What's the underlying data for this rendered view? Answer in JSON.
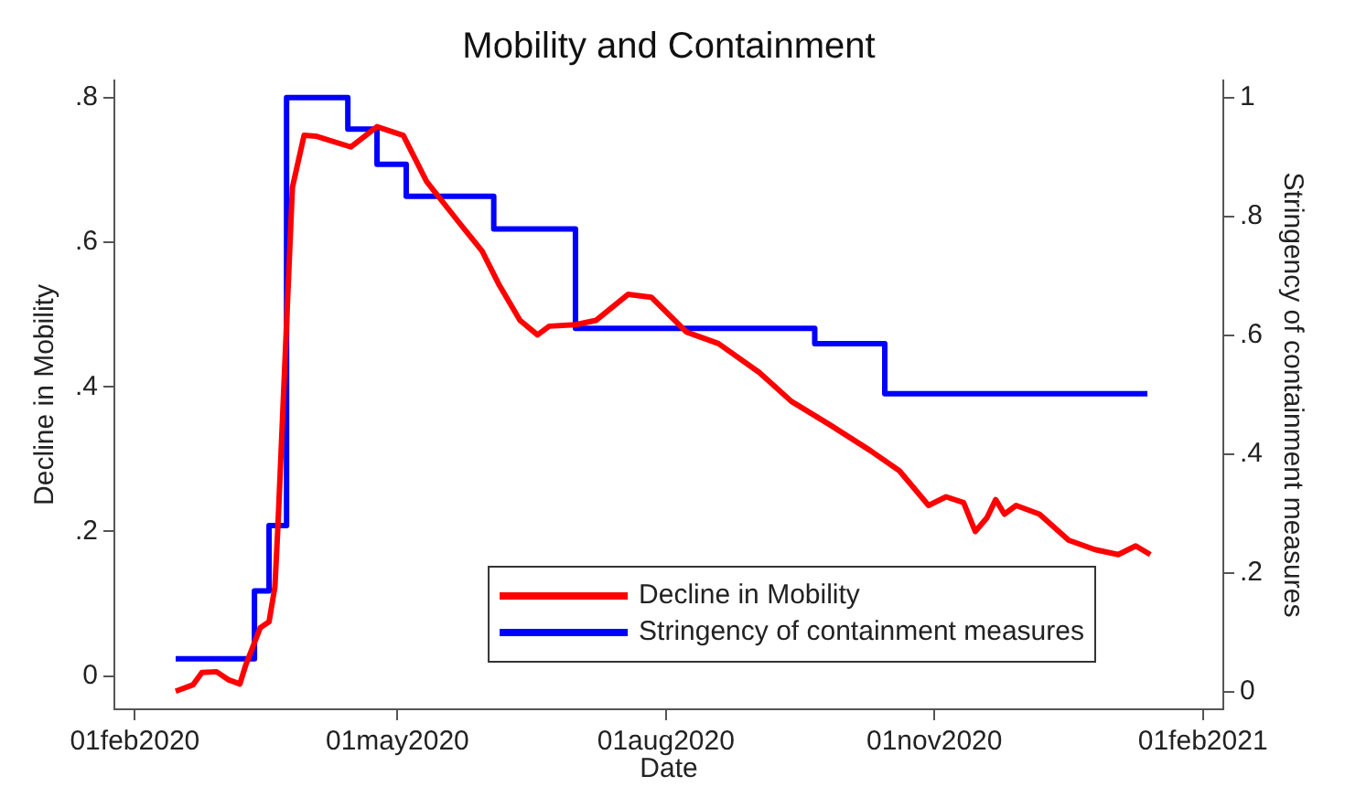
{
  "chart_data": {
    "type": "line",
    "title": "Mobility and Containment",
    "xlabel": "Date",
    "ylabel": "Decline in Mobility",
    "y2label": "Stringency of containment measures",
    "xlim": [
      "2020-01-25",
      "2021-02-08"
    ],
    "xticks": [
      {
        "value": "2020-02-01",
        "label": "01feb2020"
      },
      {
        "value": "2020-05-01",
        "label": "01may2020"
      },
      {
        "value": "2020-08-01",
        "label": "01aug2020"
      },
      {
        "value": "2020-11-01",
        "label": "01nov2020"
      },
      {
        "value": "2021-02-01",
        "label": "01feb2021"
      }
    ],
    "ylim": [
      -0.046,
      0.824
    ],
    "yticks": [
      0,
      {
        "value": 0.2,
        "label": ".2"
      },
      {
        "value": 0.4,
        "label": ".4"
      },
      {
        "value": 0.6,
        "label": ".6"
      },
      {
        "value": 0.8,
        "label": ".8"
      }
    ],
    "y2lim": [
      -0.029,
      1.029
    ],
    "y2ticks": [
      0,
      {
        "value": 0.2,
        "label": ".2"
      },
      {
        "value": 0.4,
        "label": ".4"
      },
      {
        "value": 0.6,
        "label": ".6"
      },
      {
        "value": 0.8,
        "label": ".8"
      },
      1
    ],
    "grid": false,
    "legend": "bottom right",
    "marker": "none",
    "line_style": "solid",
    "series": [
      {
        "name": "Decline in Mobility",
        "color": "#ff0000",
        "x": [
          "2020-02-15",
          "2020-02-21",
          "2020-02-24",
          "2020-02-29",
          "2020-03-04",
          "2020-03-08",
          "2020-03-10",
          "2020-03-15",
          "2020-03-18",
          "2020-03-20",
          "2020-03-21",
          "2020-03-26",
          "2020-03-30",
          "2020-04-03",
          "2020-04-15",
          "2020-04-24",
          "2020-05-03",
          "2020-05-11",
          "2020-05-22",
          "2020-05-30",
          "2020-06-05",
          "2020-06-12",
          "2020-06-18",
          "2020-06-22",
          "2020-07-01",
          "2020-07-08",
          "2020-07-19",
          "2020-07-27",
          "2020-08-08",
          "2020-08-19",
          "2020-09-02",
          "2020-09-13",
          "2020-09-26",
          "2020-10-10",
          "2020-10-20",
          "2020-10-30",
          "2020-11-05",
          "2020-11-11",
          "2020-11-15",
          "2020-11-19",
          "2020-11-22",
          "2020-11-25",
          "2020-11-29",
          "2020-12-07",
          "2020-12-17",
          "2020-12-26",
          "2021-01-03",
          "2021-01-09",
          "2021-01-14"
        ],
        "values": [
          -0.021,
          -0.012,
          0.005,
          0.006,
          -0.005,
          -0.011,
          0.015,
          0.067,
          0.075,
          0.123,
          0.204,
          0.676,
          0.748,
          0.747,
          0.732,
          0.76,
          0.748,
          0.684,
          0.628,
          0.588,
          0.54,
          0.492,
          0.472,
          0.484,
          0.486,
          0.492,
          0.528,
          0.524,
          0.476,
          0.46,
          0.42,
          0.38,
          0.348,
          0.312,
          0.284,
          0.236,
          0.248,
          0.24,
          0.2,
          0.219,
          0.244,
          0.224,
          0.236,
          0.224,
          0.188,
          0.175,
          0.168,
          0.18,
          0.168
        ]
      },
      {
        "name": "Stringency of containment measures",
        "color": "#0000ff",
        "type": "step",
        "axis": "y2",
        "x": [
          "2020-02-15",
          "2020-03-13",
          "2020-03-18",
          "2020-03-24",
          "2020-04-14",
          "2020-04-24",
          "2020-05-04",
          "2020-06-03",
          "2020-07-01",
          "2020-09-21",
          "2020-10-15",
          "2021-01-13"
        ],
        "values": [
          0.056,
          0.17,
          0.28,
          1.0,
          0.947,
          0.888,
          0.834,
          0.779,
          0.612,
          0.586,
          0.502,
          0.502
        ]
      }
    ]
  }
}
